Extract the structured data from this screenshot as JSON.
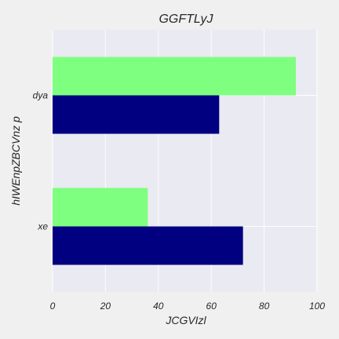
{
  "chart_data": {
    "type": "bar",
    "orientation": "horizontal",
    "title": "GGFTLyJ",
    "xlabel": "JCGVIzl",
    "ylabel": "hIWEnpZBCVnz p",
    "categories": [
      "xe",
      "dya"
    ],
    "xlim": [
      0,
      100
    ],
    "x_ticks": [
      "0",
      "20",
      "40",
      "60",
      "80",
      "100"
    ],
    "grid": true,
    "legend": "none",
    "series": [
      {
        "color": "#7fff7f",
        "values": [
          36,
          92
        ]
      },
      {
        "color": "#000080",
        "values": [
          72,
          63
        ]
      }
    ],
    "plot_background": "#eaeaf2"
  }
}
